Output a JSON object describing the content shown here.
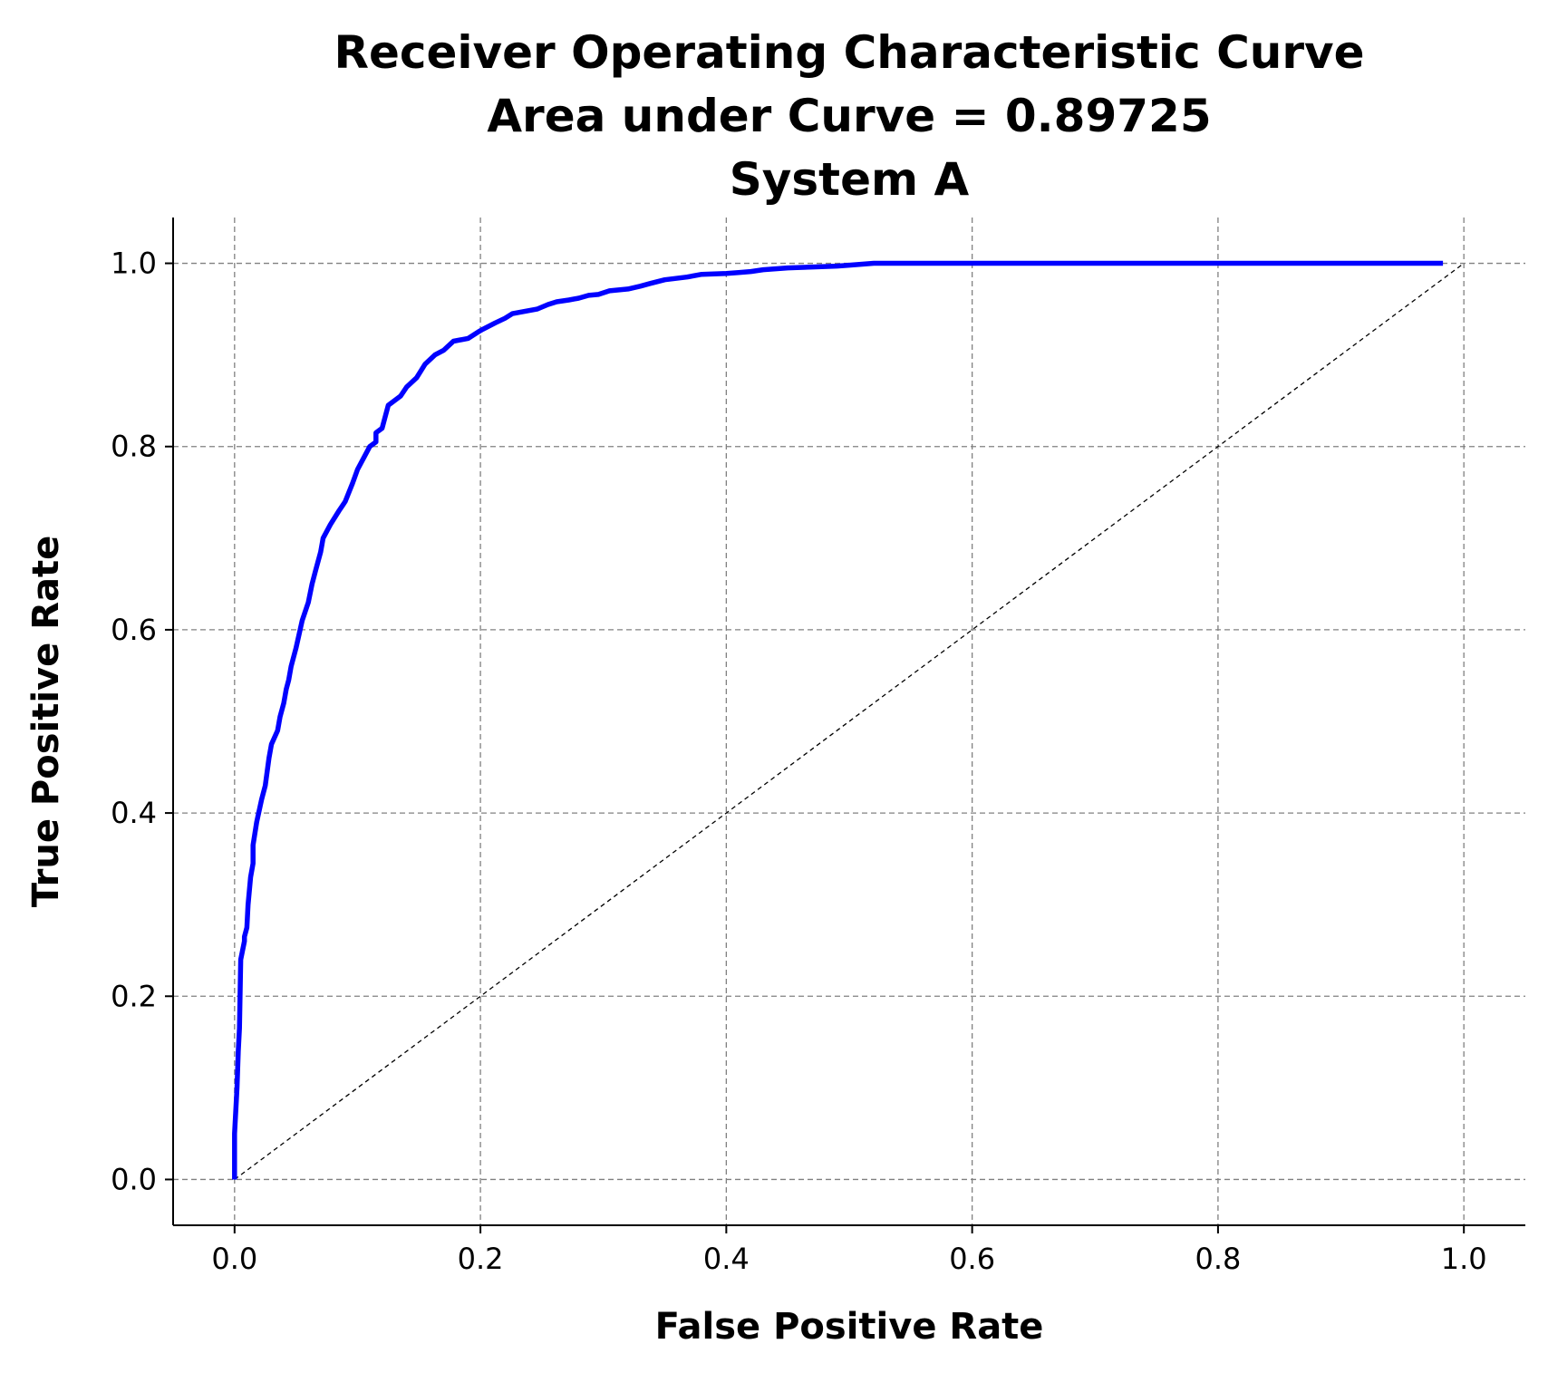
{
  "chart_data": {
    "type": "line",
    "title_lines": [
      "Receiver Operating Characteristic Curve",
      "Area under Curve = 0.89725",
      "System A"
    ],
    "xlabel": "False Positive Rate",
    "ylabel": "True Positive Rate",
    "xlim": [
      -0.05,
      1.05
    ],
    "ylim": [
      -0.05,
      1.05
    ],
    "x_ticks": [
      0.0,
      0.2,
      0.4,
      0.6,
      0.8,
      1.0
    ],
    "y_ticks": [
      0.0,
      0.2,
      0.4,
      0.6,
      0.8,
      1.0
    ],
    "x_tick_labels": [
      "0.0",
      "0.2",
      "0.4",
      "0.6",
      "0.8",
      "1.0"
    ],
    "y_tick_labels": [
      "0.0",
      "0.2",
      "0.4",
      "0.6",
      "0.8",
      "1.0"
    ],
    "grid": true,
    "series": [
      {
        "color": "#0000ff",
        "style": "solid",
        "x": [
          0.0,
          0.0,
          0.002,
          0.003,
          0.004,
          0.005,
          0.008,
          0.008,
          0.01,
          0.011,
          0.013,
          0.015,
          0.015,
          0.018,
          0.022,
          0.025,
          0.028,
          0.03,
          0.035,
          0.037,
          0.04,
          0.042,
          0.044,
          0.046,
          0.05,
          0.055,
          0.06,
          0.063,
          0.066,
          0.07,
          0.072,
          0.078,
          0.085,
          0.09,
          0.096,
          0.1,
          0.11,
          0.115,
          0.115,
          0.12,
          0.122,
          0.125,
          0.135,
          0.14,
          0.148,
          0.155,
          0.163,
          0.17,
          0.178,
          0.19,
          0.198,
          0.202,
          0.212,
          0.22,
          0.226,
          0.238,
          0.246,
          0.255,
          0.262,
          0.272,
          0.28,
          0.288,
          0.296,
          0.305,
          0.32,
          0.33,
          0.338,
          0.35,
          0.368,
          0.38,
          0.4,
          0.41,
          0.42,
          0.43,
          0.45,
          0.47,
          0.49,
          0.5,
          0.52,
          0.54,
          0.56,
          0.58,
          0.6,
          0.63,
          0.645,
          0.7,
          0.8,
          0.9,
          0.983
        ],
        "y": [
          0.0,
          0.05,
          0.1,
          0.14,
          0.165,
          0.24,
          0.26,
          0.265,
          0.275,
          0.3,
          0.33,
          0.345,
          0.365,
          0.39,
          0.415,
          0.43,
          0.46,
          0.475,
          0.49,
          0.505,
          0.52,
          0.535,
          0.545,
          0.56,
          0.58,
          0.61,
          0.63,
          0.65,
          0.665,
          0.685,
          0.7,
          0.715,
          0.73,
          0.74,
          0.76,
          0.775,
          0.8,
          0.805,
          0.815,
          0.82,
          0.83,
          0.845,
          0.855,
          0.865,
          0.875,
          0.89,
          0.9,
          0.905,
          0.915,
          0.918,
          0.925,
          0.928,
          0.935,
          0.94,
          0.945,
          0.948,
          0.95,
          0.955,
          0.958,
          0.96,
          0.962,
          0.965,
          0.966,
          0.97,
          0.972,
          0.975,
          0.978,
          0.982,
          0.985,
          0.988,
          0.989,
          0.99,
          0.991,
          0.993,
          0.995,
          0.996,
          0.997,
          0.998,
          1.0,
          1.0,
          1.0,
          1.0,
          1.0,
          1.0,
          1.0,
          1.0,
          1.0,
          1.0,
          1.0
        ]
      },
      {
        "color": "#000000",
        "style": "dashed",
        "x": [
          0.0,
          1.0
        ],
        "y": [
          0.0,
          1.0
        ]
      }
    ]
  }
}
